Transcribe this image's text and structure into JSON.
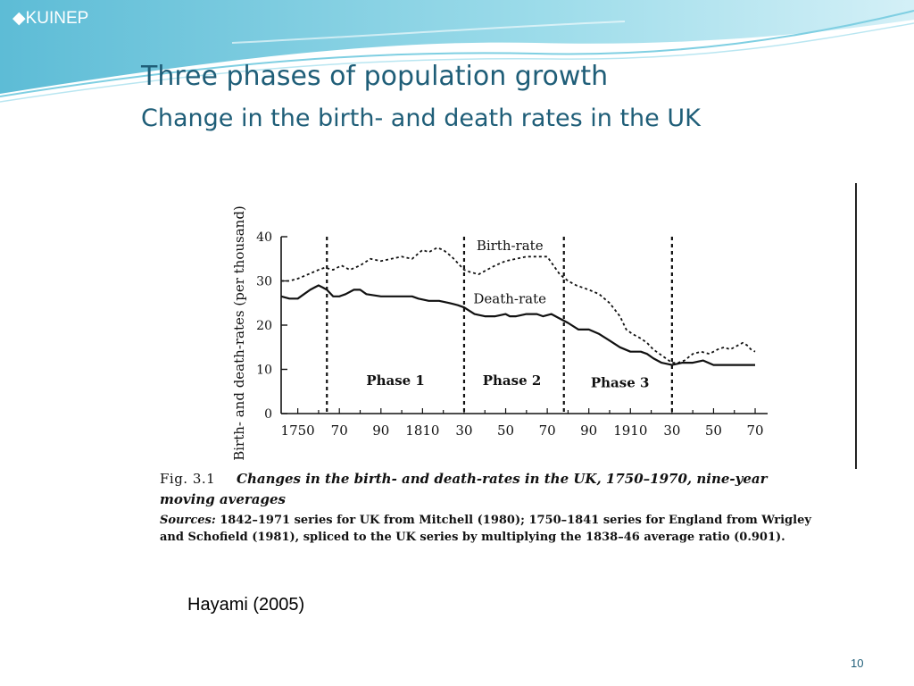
{
  "header": {
    "brand": "◆KUINEP"
  },
  "slide": {
    "title_line1": "Three phases of population growth",
    "title_line2": "Change in the birth- and death rates in the UK",
    "credit": "Hayami (2005)",
    "page_number": "10"
  },
  "caption": {
    "fig_label": "Fig. 3.1",
    "title_part1": "Changes in the birth- and death-rates in the UK, 1750–1970, nine-year",
    "title_part2": "moving averages",
    "sources_label": "Sources:",
    "sources_line1": " 1842–1971 series for UK from Mitchell (1980); 1750–1841 series for England from Wrigley",
    "sources_line2": "and Schofield (1981), spliced to the UK series by multiplying the 1838–46 average ratio (0.901)."
  },
  "colors": {
    "title": "#1f5e78",
    "banner": "#6fc6dc"
  },
  "chart_data": {
    "type": "line",
    "ylabel": "Birth- and death-rates (per thousand)",
    "xlabel": "",
    "xlim": [
      1742,
      1976
    ],
    "ylim": [
      0,
      40
    ],
    "y_ticks": [
      0,
      10,
      20,
      30,
      40
    ],
    "x_tick_labels": [
      {
        "x": 1750,
        "label": "1750"
      },
      {
        "x": 1770,
        "label": "70"
      },
      {
        "x": 1790,
        "label": "90"
      },
      {
        "x": 1810,
        "label": "1810"
      },
      {
        "x": 1830,
        "label": "30"
      },
      {
        "x": 1850,
        "label": "50"
      },
      {
        "x": 1870,
        "label": "70"
      },
      {
        "x": 1890,
        "label": "90"
      },
      {
        "x": 1910,
        "label": "1910"
      },
      {
        "x": 1930,
        "label": "30"
      },
      {
        "x": 1950,
        "label": "50"
      },
      {
        "x": 1970,
        "label": "70"
      }
    ],
    "phase_dividers": [
      1764,
      1830,
      1878,
      1930
    ],
    "phase_labels": [
      {
        "label": "Phase 1",
        "x": 1797,
        "y": 6.5
      },
      {
        "label": "Phase 2",
        "x": 1853,
        "y": 6.5
      },
      {
        "label": "Phase 3",
        "x": 1905,
        "y": 6
      }
    ],
    "series": [
      {
        "name": "Birth-rate",
        "style": "dashed",
        "x": [
          1742,
          1746,
          1750,
          1755,
          1760,
          1763,
          1767,
          1771,
          1775,
          1780,
          1785,
          1790,
          1795,
          1800,
          1805,
          1810,
          1813,
          1817,
          1820,
          1824,
          1827,
          1830,
          1833,
          1837,
          1841,
          1845,
          1850,
          1855,
          1860,
          1865,
          1870,
          1873,
          1876,
          1880,
          1884,
          1890,
          1895,
          1900,
          1905,
          1908,
          1911,
          1915,
          1918,
          1921,
          1924,
          1927,
          1930,
          1933,
          1936,
          1940,
          1944,
          1948,
          1952,
          1955,
          1958,
          1962,
          1964,
          1966,
          1968,
          1970
        ],
        "values": [
          30,
          30,
          30.5,
          31.5,
          32.5,
          33,
          32.5,
          33.5,
          32.5,
          33.5,
          35,
          34.5,
          35,
          35.5,
          35,
          37,
          36.5,
          37.5,
          37,
          35.5,
          34,
          32.5,
          32,
          31.5,
          32.5,
          33.5,
          34.5,
          35,
          35.5,
          35.5,
          35.5,
          33.5,
          31.5,
          30,
          29,
          28,
          27,
          25,
          22,
          19,
          18,
          17,
          16,
          14.5,
          13.5,
          12.5,
          11.5,
          11.5,
          12,
          13.5,
          14,
          13.5,
          14.5,
          15,
          14.5,
          15.5,
          16,
          15.5,
          14.5,
          14
        ]
      },
      {
        "name": "Death-rate",
        "style": "solid",
        "x": [
          1742,
          1746,
          1750,
          1753,
          1756,
          1758,
          1760,
          1762,
          1764,
          1767,
          1770,
          1773,
          1777,
          1780,
          1783,
          1790,
          1800,
          1805,
          1808,
          1813,
          1818,
          1823,
          1827,
          1830,
          1835,
          1840,
          1845,
          1850,
          1852,
          1855,
          1860,
          1865,
          1868,
          1872,
          1876,
          1880,
          1885,
          1890,
          1895,
          1900,
          1905,
          1910,
          1915,
          1918,
          1921,
          1925,
          1930,
          1935,
          1940,
          1945,
          1950,
          1955,
          1960,
          1965,
          1970
        ],
        "values": [
          26.5,
          26,
          26,
          27,
          28,
          28.5,
          29,
          28.5,
          28,
          26.5,
          26.5,
          27,
          28,
          28,
          27,
          26.5,
          26.5,
          26.5,
          26,
          25.5,
          25.5,
          25,
          24.5,
          24,
          22.5,
          22,
          22,
          22.5,
          22,
          22,
          22.5,
          22.5,
          22,
          22.5,
          21.5,
          20.5,
          19,
          19,
          18,
          16.5,
          15,
          14,
          14,
          13.5,
          12.5,
          11.5,
          11,
          11.5,
          11.5,
          12,
          11,
          11,
          11,
          11,
          11
        ]
      }
    ]
  }
}
